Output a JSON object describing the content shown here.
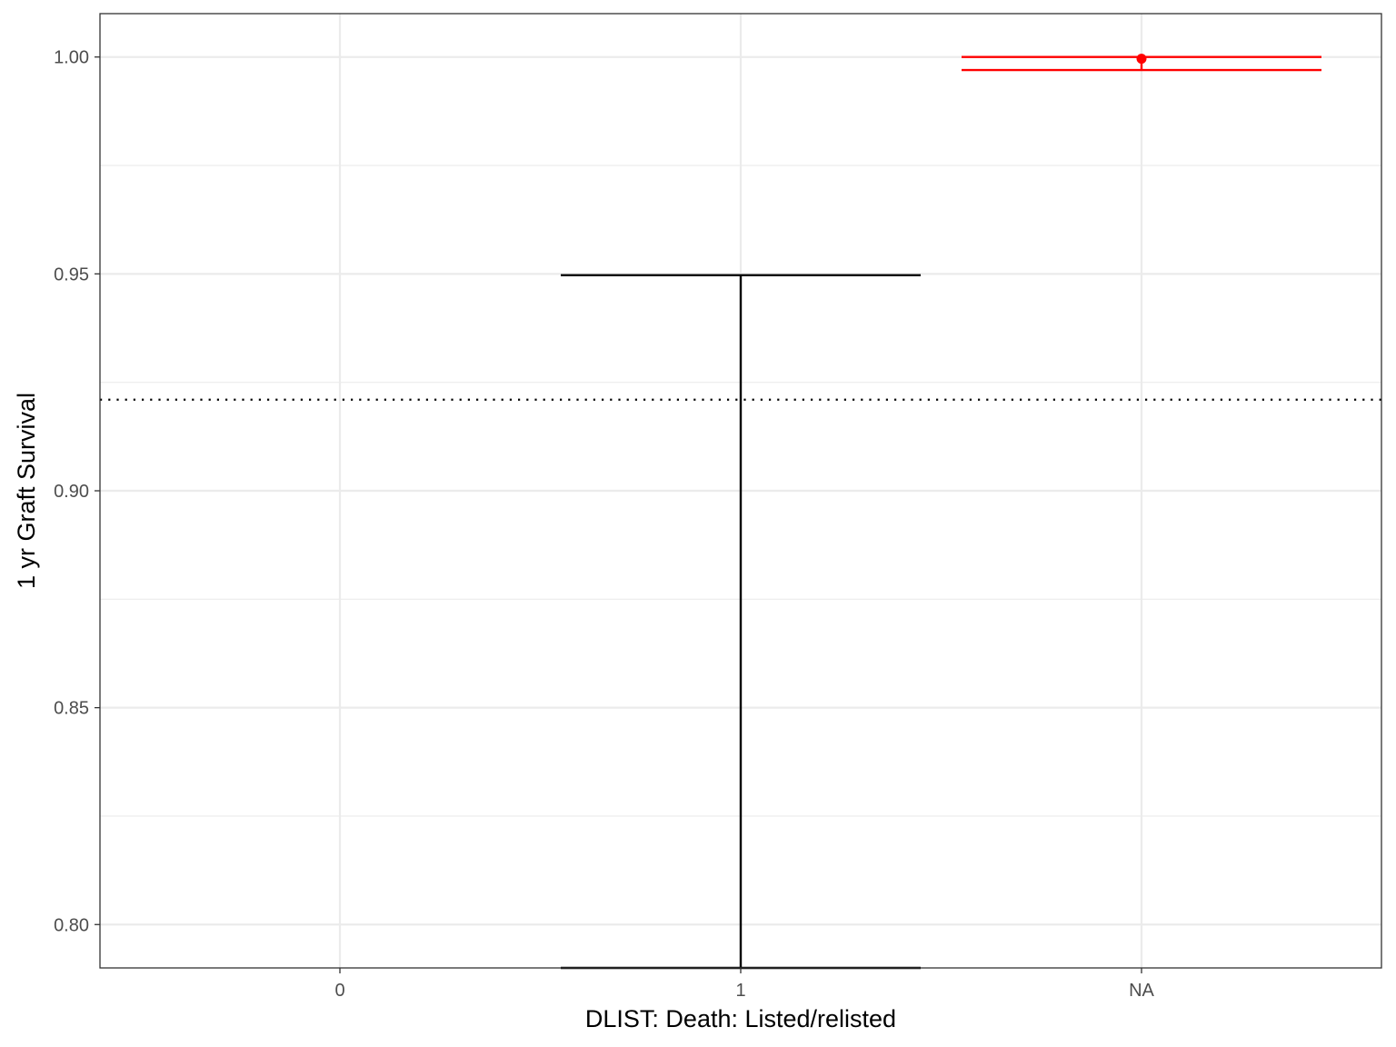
{
  "chart_data": {
    "type": "errorbar",
    "xlabel": "DLIST: Death: Listed/relisted",
    "ylabel": "1 yr Graft Survival",
    "categories": [
      "0",
      "1",
      "NA"
    ],
    "ylim": [
      0.79,
      1.01
    ],
    "y_ticks": [
      0.8,
      0.85,
      0.9,
      0.95,
      1.0
    ],
    "y_tick_labels": [
      "0.80",
      "0.85",
      "0.90",
      "0.95",
      "1.00"
    ],
    "grid": true,
    "reference_line": {
      "y": 0.921,
      "style": "dotted",
      "color": "#000000"
    },
    "series": [
      {
        "color": "#000000",
        "points": [
          {
            "category": "1",
            "estimate": null,
            "lower": 0.79,
            "upper": 0.9497
          }
        ]
      },
      {
        "color": "#ff0000",
        "points": [
          {
            "category": "NA",
            "estimate": 0.9996,
            "lower": 0.997,
            "upper": 1.0
          }
        ]
      }
    ]
  }
}
